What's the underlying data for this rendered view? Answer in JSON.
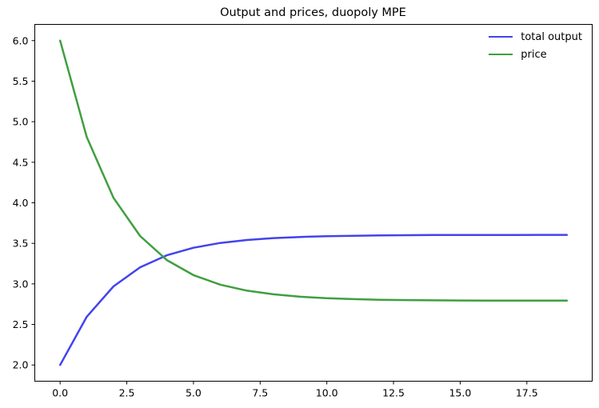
{
  "chart_data": {
    "type": "line",
    "title": "Output and prices, duopoly MPE",
    "xlabel": "",
    "ylabel": "",
    "x": [
      0,
      1,
      2,
      3,
      4,
      5,
      6,
      7,
      8,
      9,
      10,
      11,
      12,
      13,
      14,
      15,
      16,
      17,
      18,
      19
    ],
    "series": [
      {
        "name": "total output",
        "color": "#4343ee",
        "line_width": 2.5,
        "values": [
          2.0,
          2.595,
          2.969,
          3.205,
          3.353,
          3.446,
          3.505,
          3.541,
          3.565,
          3.579,
          3.588,
          3.594,
          3.598,
          3.6,
          3.602,
          3.602,
          3.603,
          3.603,
          3.604,
          3.604
        ]
      },
      {
        "name": "price",
        "color": "#3f9f3f",
        "line_width": 2.5,
        "values": [
          6.0,
          4.81,
          4.061,
          3.591,
          3.294,
          3.108,
          2.991,
          2.917,
          2.871,
          2.842,
          2.823,
          2.812,
          2.804,
          2.8,
          2.797,
          2.795,
          2.794,
          2.793,
          2.793,
          2.793
        ]
      }
    ],
    "xlim": [
      -0.95,
      19.95
    ],
    "ylim": [
      1.8,
      6.2
    ],
    "x_ticks": {
      "values": [
        0,
        2.5,
        5,
        7.5,
        10,
        12.5,
        15,
        17.5
      ],
      "labels": [
        "0.0",
        "2.5",
        "5.0",
        "7.5",
        "10.0",
        "12.5",
        "15.0",
        "17.5"
      ]
    },
    "y_ticks": {
      "values": [
        2.0,
        2.5,
        3.0,
        3.5,
        4.0,
        4.5,
        5.0,
        5.5,
        6.0
      ],
      "labels": [
        "2.0",
        "2.5",
        "3.0",
        "3.5",
        "4.0",
        "4.5",
        "5.0",
        "5.5",
        "6.0"
      ]
    },
    "legend_position": "upper right",
    "grid": false,
    "spine_color": "#000000",
    "background_color": "#ffffff"
  }
}
